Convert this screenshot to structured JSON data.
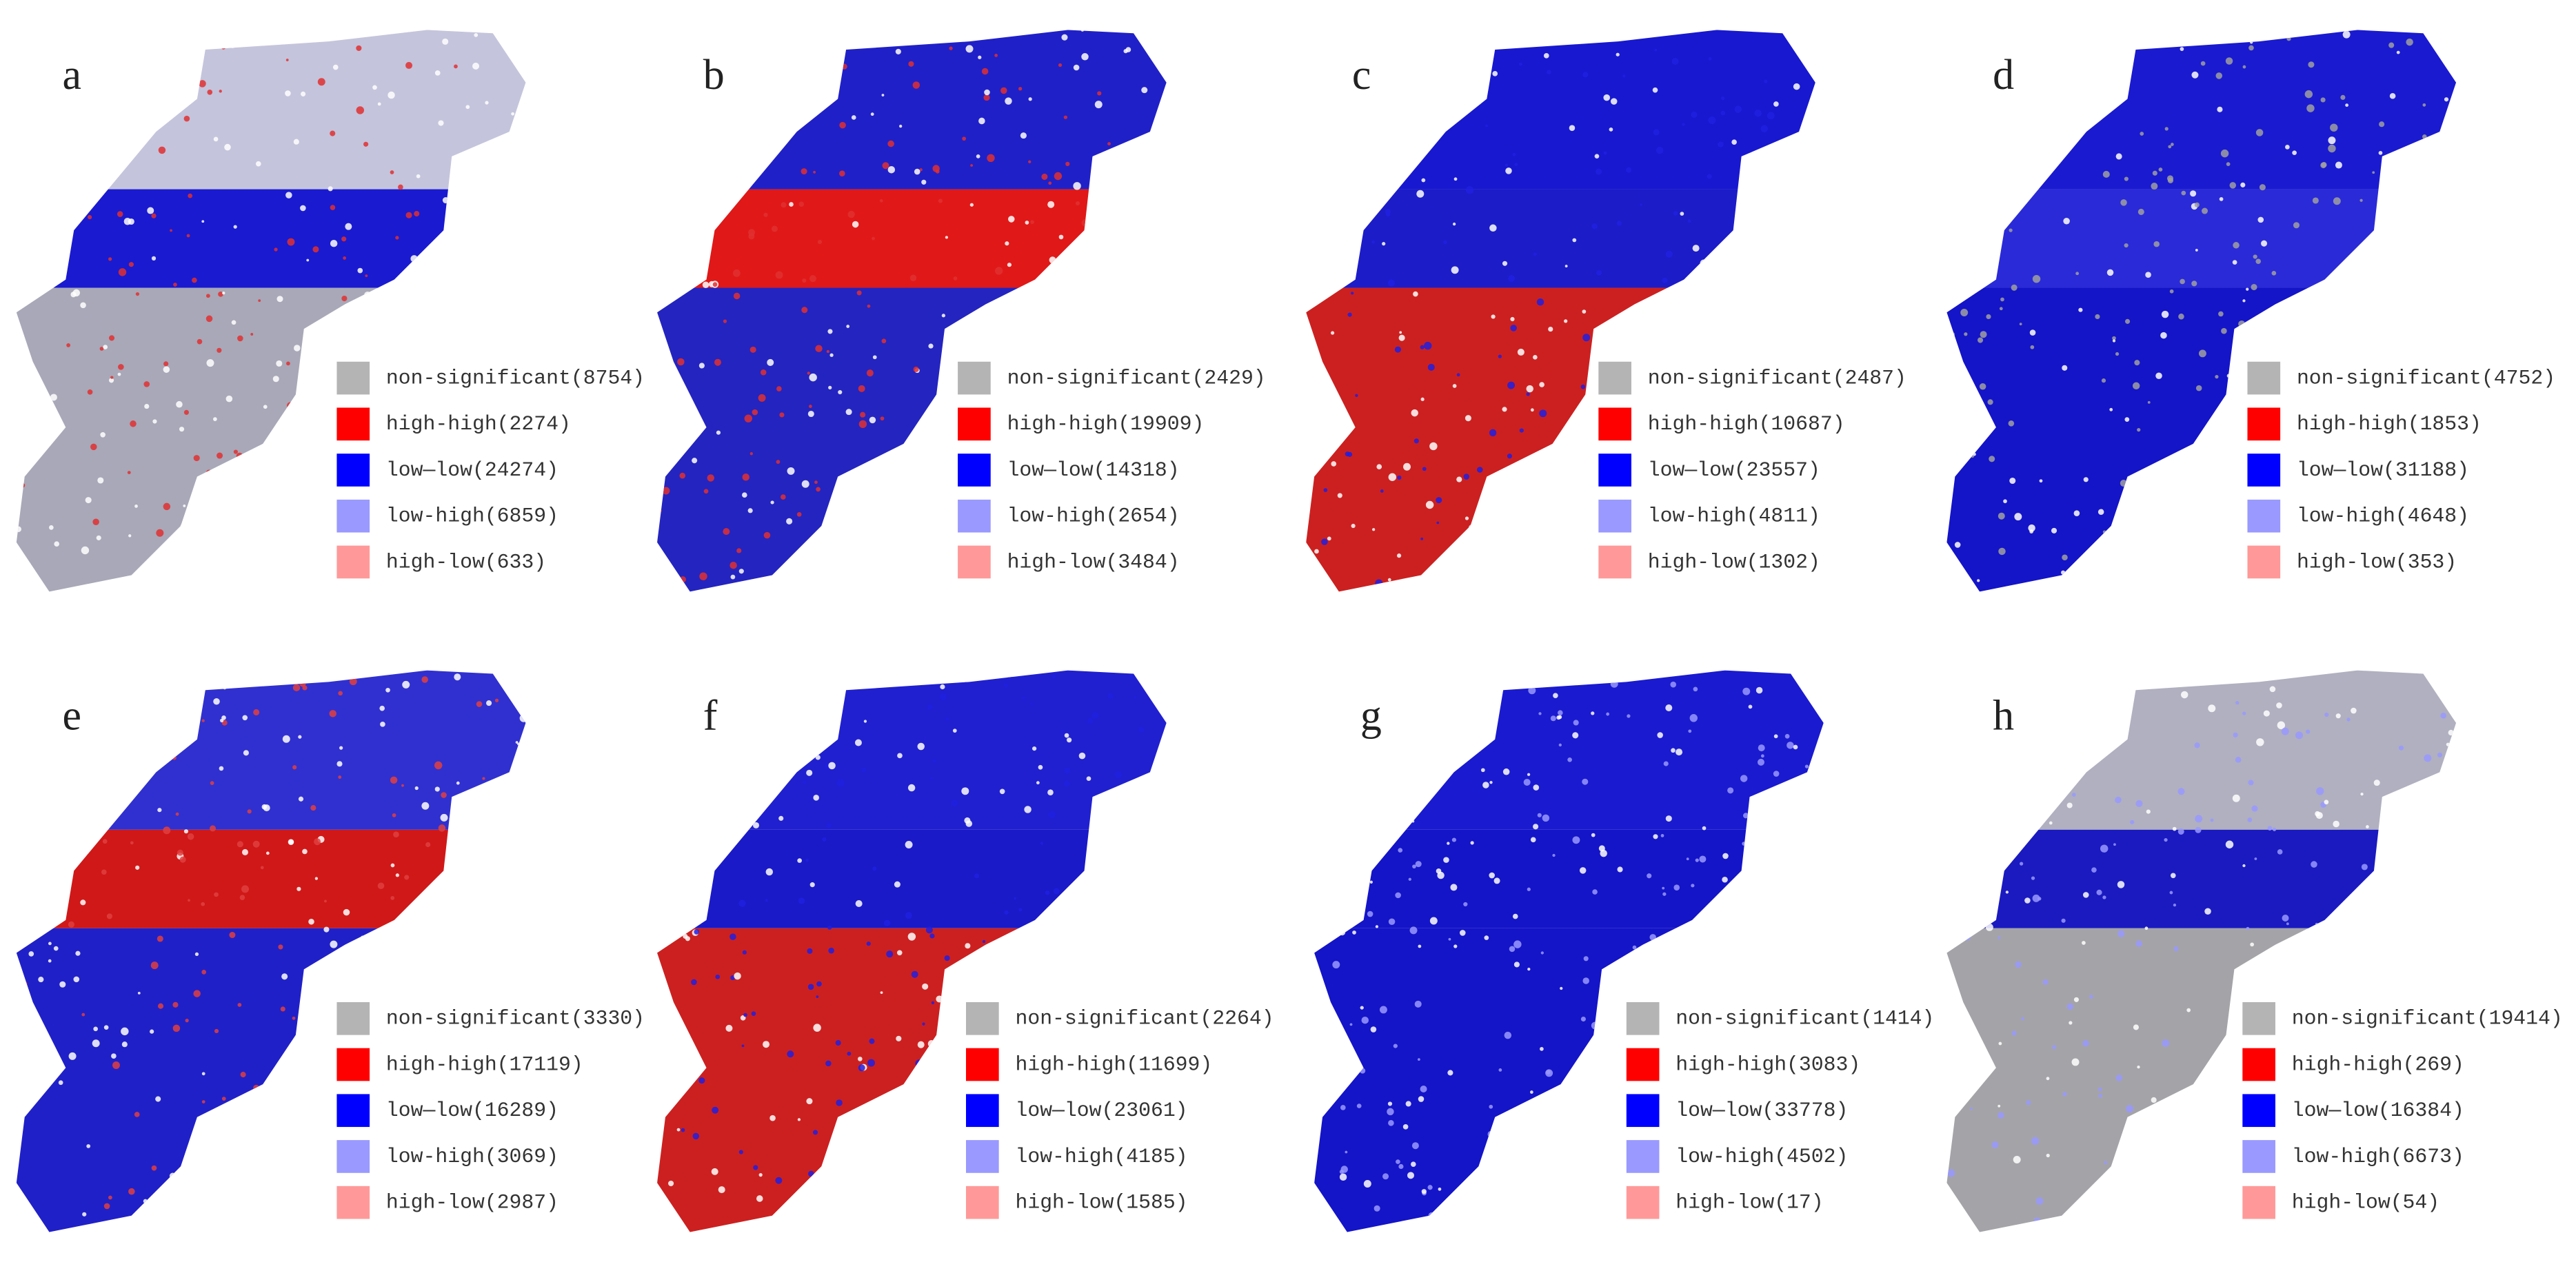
{
  "panels": [
    {
      "label": "a",
      "legend": [
        "non-significant(8754)",
        "high-high(2274)",
        "low—low(24274)",
        "low-high(6859)",
        "high-low(633)"
      ]
    },
    {
      "label": "b",
      "legend": [
        "non-significant(2429)",
        "high-high(19909)",
        "low—low(14318)",
        "low-high(2654)",
        "high-low(3484)"
      ]
    },
    {
      "label": "c",
      "legend": [
        "non-significant(2487)",
        "high-high(10687)",
        "low—low(23557)",
        "low-high(4811)",
        "high-low(1302)"
      ]
    },
    {
      "label": "d",
      "legend": [
        "non-significant(4752)",
        "high-high(1853)",
        "low—low(31188)",
        "low-high(4648)",
        "high-low(353)"
      ]
    },
    {
      "label": "e",
      "legend": [
        "non-significant(3330)",
        "high-high(17119)",
        "low—low(16289)",
        "low-high(3069)",
        "high-low(2987)"
      ]
    },
    {
      "label": "f",
      "legend": [
        "non-significant(2264)",
        "high-high(11699)",
        "low—low(23061)",
        "low-high(4185)",
        "high-low(1585)"
      ]
    },
    {
      "label": "g",
      "legend": [
        "non-significant(1414)",
        "high-high(3083)",
        "low—low(33778)",
        "low-high(4502)",
        "high-low(17)"
      ]
    },
    {
      "label": "h",
      "legend": [
        "non-significant(19414)",
        "high-high(269)",
        "low—low(16384)",
        "low-high(6673)",
        "high-low(54)"
      ]
    }
  ],
  "legend_colors": [
    "#b4b4b4",
    "#ff0000",
    "#0000ff",
    "#9999ff",
    "#ff9999"
  ]
}
